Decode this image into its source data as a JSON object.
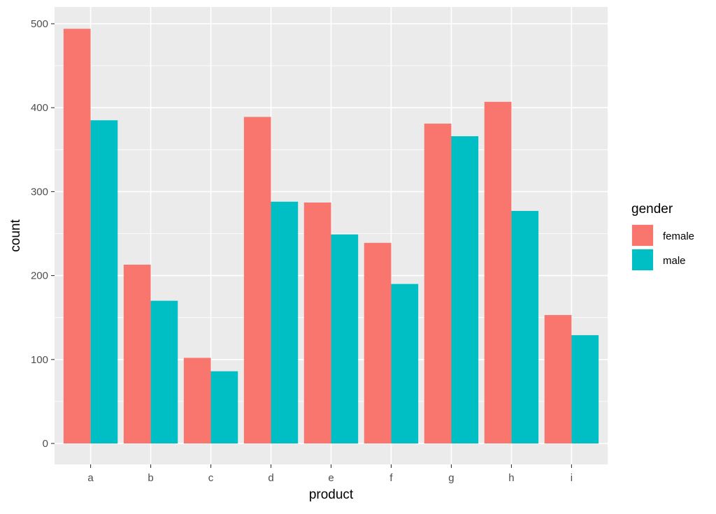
{
  "chart_data": {
    "type": "bar",
    "title": "",
    "xlabel": "product",
    "ylabel": "count",
    "categories": [
      "a",
      "b",
      "c",
      "d",
      "e",
      "f",
      "g",
      "h",
      "i"
    ],
    "series": [
      {
        "name": "female",
        "color": "#F8766D",
        "values": [
          494,
          213,
          102,
          389,
          287,
          239,
          381,
          407,
          153
        ]
      },
      {
        "name": "male",
        "color": "#00BFC4",
        "values": [
          385,
          170,
          86,
          288,
          249,
          190,
          366,
          277,
          129
        ]
      }
    ],
    "ylim": [
      0,
      520
    ],
    "yticks": [
      0,
      100,
      200,
      300,
      400,
      500
    ],
    "grid": true,
    "legend": {
      "title": "gender",
      "position": "right"
    },
    "panel_background": "#EBEBEB",
    "grid_color": "#FFFFFF"
  }
}
